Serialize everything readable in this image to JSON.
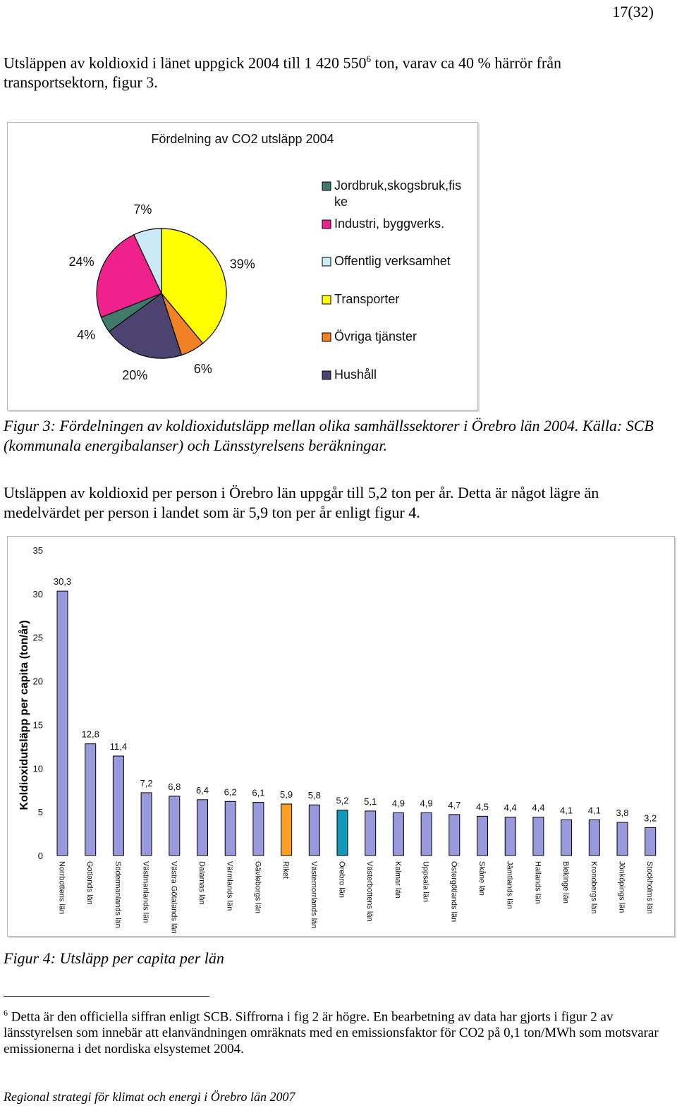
{
  "page_number": "17(32)",
  "paragraph1": {
    "text_before": "Utsläppen av koldioxid i länet uppgick 2004 till 1 420 550",
    "sup": "6",
    "text_after": " ton, varav ca 40 % härrör från transportsektorn, figur 3."
  },
  "figure3_caption": "Figur 3: Fördelningen av koldioxidutsläpp mellan olika samhällssektorer i Örebro län 2004. Källa: SCB (kommunala energibalanser) och Länsstyrelsens beräkningar.",
  "paragraph2": "Utsläppen av koldioxid per person i Örebro län uppgår till 5,2 ton per år. Detta är något lägre än medelvärdet per person i landet som är 5,9 ton per år enligt figur 4.",
  "figure4_caption": "Figur 4: Utsläpp per capita per län",
  "footnote": {
    "marker": "6",
    "text": " Detta är den officiella siffran enligt SCB. Siffrorna i fig 2 är högre. En bearbetning av data har gjorts i figur 2 av länsstyrelsen som innebär att elanvändningen omräknats med en emissionsfaktor för CO2 på 0,1 ton/MWh som motsvarar emissionerna i det nordiska elsystemet 2004."
  },
  "footer": "Regional strategi för klimat och energi i Örebro län 2007",
  "chart_data": [
    {
      "type": "pie",
      "title": "Fördelning av CO2 utsläpp 2004",
      "legend_position": "right",
      "slices": [
        {
          "name": "Transporter",
          "value": 39,
          "label": "39%",
          "color": "#ffff00"
        },
        {
          "name": "Övriga tjänster",
          "value": 6,
          "label": "6%",
          "color": "#f28024"
        },
        {
          "name": "Hushåll",
          "value": 20,
          "label": "20%",
          "color": "#4c4370"
        },
        {
          "name": "Jordbruk,skogsbruk,fis ke",
          "value": 4,
          "label": "4%",
          "color": "#3f7a6c"
        },
        {
          "name": "Industri, byggverks.",
          "value": 24,
          "label": "24%",
          "color": "#f0208c"
        },
        {
          "name": "Offentlig verksamhet",
          "value": 7,
          "label": "7%",
          "color": "#cce9f8"
        }
      ],
      "legend": [
        {
          "label": "Jordbruk,skogsbruk,fis ke",
          "color": "#3f7a6c"
        },
        {
          "label": "Industri, byggverks.",
          "color": "#f0208c"
        },
        {
          "label": "Offentlig verksamhet",
          "color": "#cce9f8"
        },
        {
          "label": "Transporter",
          "color": "#ffff00"
        },
        {
          "label": "Övriga tjänster",
          "color": "#f28024"
        },
        {
          "label": "Hushåll",
          "color": "#4c4370"
        }
      ]
    },
    {
      "type": "bar",
      "ylabel": "Koldioxidutsläpp per capita (ton/år)",
      "ylim": [
        0,
        35
      ],
      "yticks": [
        "0",
        "5",
        "10",
        "15",
        "20",
        "25",
        "30",
        "35"
      ],
      "grid": false,
      "colors": {
        "default": "#9999dd",
        "riket": "#ffa020",
        "orebro": "#1199bb"
      },
      "categories": [
        "Norrbottens län",
        "Gotlands län",
        "Södermanlands län",
        "Västmanlands län",
        "Västra Götalands län",
        "Dalarnas län",
        "Värmlands län",
        "Gävleborgs län",
        "Riket",
        "Västernorrlands län",
        "Örebro län",
        "Västerbottens län",
        "Kalmar län",
        "Uppsala län",
        "Östergötlands län",
        "Skåne län",
        "Jämtlands län",
        "Hallands län",
        "Blekinge län",
        "Kronobergs län",
        "Jönköpings län",
        "Stockholms län"
      ],
      "values": [
        30.3,
        12.8,
        11.4,
        7.2,
        6.8,
        6.4,
        6.2,
        6.1,
        5.9,
        5.8,
        5.2,
        5.1,
        4.9,
        4.9,
        4.7,
        4.5,
        4.4,
        4.4,
        4.1,
        4.1,
        3.8,
        3.2
      ],
      "data_labels": [
        "30,3",
        "12,8",
        "11,4",
        "7,2",
        "6,8",
        "6,4",
        "6,2",
        "6,1",
        "5,9",
        "5,8",
        "5,2",
        "5,1",
        "4,9",
        "4,9",
        "4,7",
        "4,5",
        "4,4",
        "4,4",
        "4,1",
        "4,1",
        "3,8",
        "3,2"
      ],
      "highlight": {
        "Riket": "riket",
        "Örebro län": "orebro"
      }
    }
  ]
}
